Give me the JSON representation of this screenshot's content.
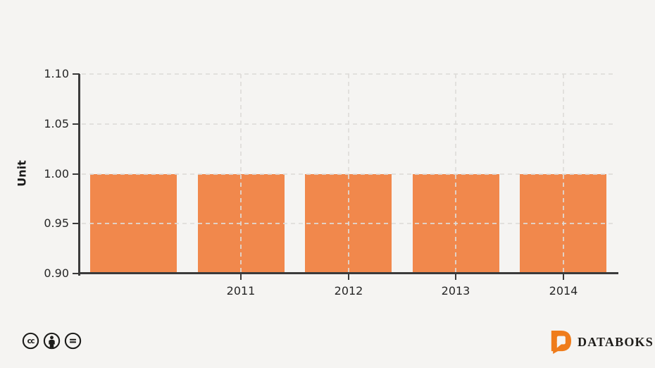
{
  "chart_data": {
    "type": "bar",
    "categories": [
      "",
      "2011",
      "2012",
      "2013",
      "2014"
    ],
    "values": [
      1.0,
      1.0,
      1.0,
      1.0,
      1.0
    ],
    "title": "",
    "xlabel": "",
    "ylabel": "Unit",
    "ylim": [
      0.9,
      1.1
    ],
    "yticks": [
      0.9,
      0.95,
      1.0,
      1.05,
      1.1
    ],
    "ytick_labels": [
      "0.90",
      "0.95",
      "1.00",
      "1.05",
      "1.10"
    ],
    "grid": "dashed",
    "legend_position": "none"
  },
  "colors": {
    "background": "#F5F4F2",
    "bar": "#F1884C",
    "axis": "#3B3B3B",
    "grid": "#DEDCD9",
    "tick_text": "#262626",
    "brand_orange": "#EF7C1B",
    "icon_dark": "#1D1D1B"
  },
  "footer": {
    "license": {
      "icons": [
        "cc",
        "by",
        "nd"
      ]
    },
    "brand": {
      "name": "DATABOKS"
    }
  }
}
